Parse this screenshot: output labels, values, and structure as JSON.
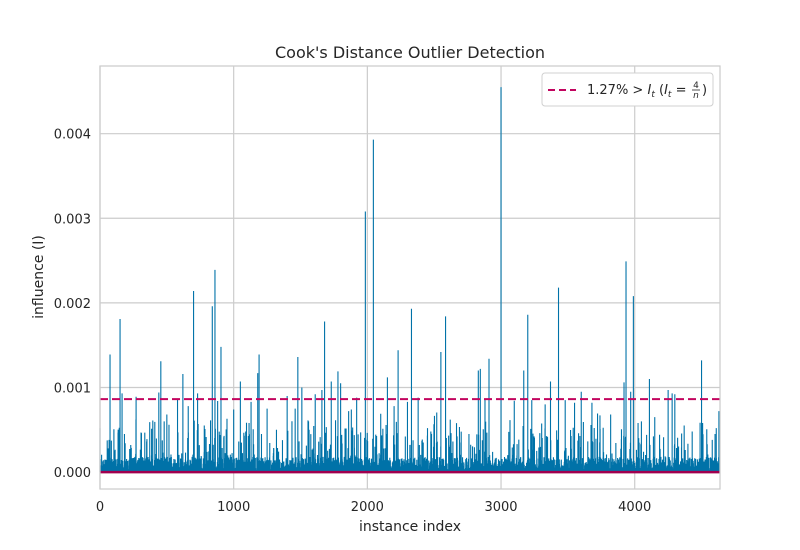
{
  "chart_data": {
    "type": "line",
    "title": "Cook's Distance Outlier Detection",
    "xlabel": "instance index",
    "ylabel": "influence (I)",
    "xlim": [
      0,
      4638
    ],
    "ylim": [
      -0.0002,
      0.0048
    ],
    "xticks": [
      0,
      1000,
      2000,
      3000,
      4000
    ],
    "xtick_labels": [
      "0",
      "1000",
      "2000",
      "3000",
      "4000"
    ],
    "yticks": [
      0.0,
      0.001,
      0.002,
      0.003,
      0.004
    ],
    "ytick_labels": [
      "0.000",
      "0.001",
      "0.002",
      "0.003",
      "0.004"
    ],
    "grid": true,
    "legend_position": "upper-right",
    "legend": {
      "text_main": "1.27% > ",
      "italic_i": "I",
      "sub_t": "t",
      "paren_open": " (",
      "eq": " = ",
      "frac_num": "4",
      "frac_den": "n",
      "paren_close": ")"
    },
    "threshold": 0.000863,
    "threshold_style": "dashed",
    "series": [
      {
        "kind": "stem",
        "n": 4638,
        "baseline": 0,
        "peaks": [
          [
            0,
            0.00052
          ],
          [
            60,
            0.00028
          ],
          [
            68,
            0.00038
          ],
          [
            75,
            0.00139
          ],
          [
            105,
            0.00025
          ],
          [
            150,
            0.00181
          ],
          [
            165,
            0.00093
          ],
          [
            230,
            0.00032
          ],
          [
            270,
            0.00089
          ],
          [
            310,
            0.00046
          ],
          [
            395,
            0.00061
          ],
          [
            440,
            0.00094
          ],
          [
            455,
            0.00131
          ],
          [
            480,
            0.0006
          ],
          [
            500,
            0.00068
          ],
          [
            580,
            0.00086
          ],
          [
            620,
            0.00116
          ],
          [
            660,
            0.00078
          ],
          [
            700,
            0.00214
          ],
          [
            730,
            0.00093
          ],
          [
            780,
            0.00055
          ],
          [
            840,
            0.00196
          ],
          [
            860,
            0.00239
          ],
          [
            880,
            0.00084
          ],
          [
            905,
            0.00148
          ],
          [
            950,
            0.00063
          ],
          [
            1000,
            0.00074
          ],
          [
            1050,
            0.00107
          ],
          [
            1090,
            0.00048
          ],
          [
            1130,
            0.00083
          ],
          [
            1180,
            0.00117
          ],
          [
            1190,
            0.00139
          ],
          [
            1250,
            0.00075
          ],
          [
            1320,
            0.0005
          ],
          [
            1400,
            0.0009
          ],
          [
            1460,
            0.00075
          ],
          [
            1480,
            0.00136
          ],
          [
            1510,
            0.001
          ],
          [
            1560,
            0.0006
          ],
          [
            1610,
            0.00092
          ],
          [
            1660,
            0.00097
          ],
          [
            1680,
            0.00178
          ],
          [
            1730,
            0.00107
          ],
          [
            1780,
            0.00119
          ],
          [
            1800,
            0.00105
          ],
          [
            1860,
            0.00072
          ],
          [
            1880,
            0.00074
          ],
          [
            1920,
            0.00088
          ],
          [
            1950,
            0.00047
          ],
          [
            1985,
            0.00308
          ],
          [
            2045,
            0.00393
          ],
          [
            2100,
            0.00069
          ],
          [
            2150,
            0.00112
          ],
          [
            2200,
            0.00078
          ],
          [
            2230,
            0.00144
          ],
          [
            2300,
            0.00083
          ],
          [
            2330,
            0.00193
          ],
          [
            2380,
            0.00088
          ],
          [
            2450,
            0.00052
          ],
          [
            2550,
            0.00142
          ],
          [
            2585,
            0.00184
          ],
          [
            2620,
            0.00062
          ],
          [
            2700,
            0.00035
          ],
          [
            2760,
            0.00045
          ],
          [
            2830,
            0.0012
          ],
          [
            2845,
            0.00122
          ],
          [
            2880,
            0.00086
          ],
          [
            2910,
            0.00134
          ],
          [
            3000,
            0.00455
          ],
          [
            3050,
            0.0002
          ],
          [
            3120,
            0.00033
          ],
          [
            3170,
            0.0012
          ],
          [
            3200,
            0.00186
          ],
          [
            3230,
            0.00085
          ],
          [
            3330,
            0.0008
          ],
          [
            3370,
            0.00107
          ],
          [
            3430,
            0.00218
          ],
          [
            3480,
            0.00085
          ],
          [
            3550,
            0.00082
          ],
          [
            3600,
            0.00095
          ],
          [
            3680,
            0.00082
          ],
          [
            3740,
            0.00067
          ],
          [
            3820,
            0.00068
          ],
          [
            3920,
            0.00106
          ],
          [
            3935,
            0.00249
          ],
          [
            3970,
            0.00095
          ],
          [
            3990,
            0.00208
          ],
          [
            4050,
            0.0006
          ],
          [
            4110,
            0.0011
          ],
          [
            4150,
            0.00065
          ],
          [
            4250,
            0.00097
          ],
          [
            4280,
            0.00093
          ],
          [
            4300,
            0.00092
          ],
          [
            4370,
            0.00055
          ],
          [
            4430,
            0.00048
          ],
          [
            4500,
            0.00132
          ],
          [
            4580,
            0.00038
          ],
          [
            4610,
            0.00052
          ],
          [
            4630,
            0.00072
          ]
        ]
      }
    ]
  },
  "colors": {
    "stem": "#0072a8",
    "threshold": "#c2045e",
    "baseline": "#a0004f",
    "grid": "#cccccc",
    "axes_edge": "#cccccc",
    "background": "#ffffff",
    "text": "#262626"
  }
}
